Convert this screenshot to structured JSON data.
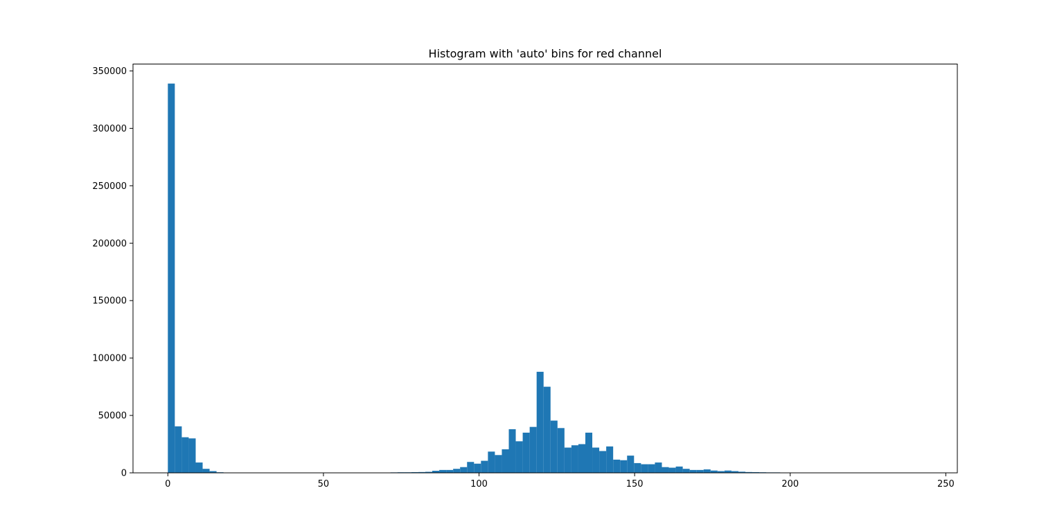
{
  "chart_data": {
    "type": "bar",
    "title": "Histogram with 'auto' bins for red channel",
    "xlabel": "",
    "ylabel": "",
    "xlim": [
      -11.2,
      253.7
    ],
    "ylim": [
      0,
      356000
    ],
    "xticks": [
      0,
      50,
      100,
      150,
      200,
      250
    ],
    "yticks": [
      0,
      50000,
      100000,
      150000,
      200000,
      250000,
      300000,
      350000
    ],
    "bar_color": "#1f77b4",
    "grid": false,
    "bin_width": 2.236,
    "bin_start": 0,
    "values": [
      339000,
      40500,
      31000,
      30000,
      9000,
      3500,
      1500,
      500,
      100,
      0,
      0,
      0,
      0,
      0,
      0,
      0,
      0,
      0,
      0,
      0,
      0,
      0,
      0,
      0,
      0,
      0,
      0,
      0,
      0,
      0,
      0,
      300,
      400,
      500,
      500,
      600,
      700,
      900,
      1800,
      2500,
      2500,
      3500,
      5000,
      9500,
      8000,
      10500,
      18500,
      15500,
      20500,
      38000,
      27500,
      35000,
      40000,
      88000,
      75000,
      45500,
      39000,
      22000,
      24000,
      25000,
      35000,
      22000,
      19000,
      23000,
      11500,
      11000,
      15000,
      8500,
      7500,
      7500,
      9000,
      5000,
      4500,
      5500,
      3500,
      2500,
      2500,
      3000,
      2000,
      1500,
      2000,
      1500,
      1000,
      700,
      600,
      500,
      400,
      400,
      300,
      300,
      300,
      300,
      300,
      300,
      200,
      200,
      200,
      150
    ]
  }
}
